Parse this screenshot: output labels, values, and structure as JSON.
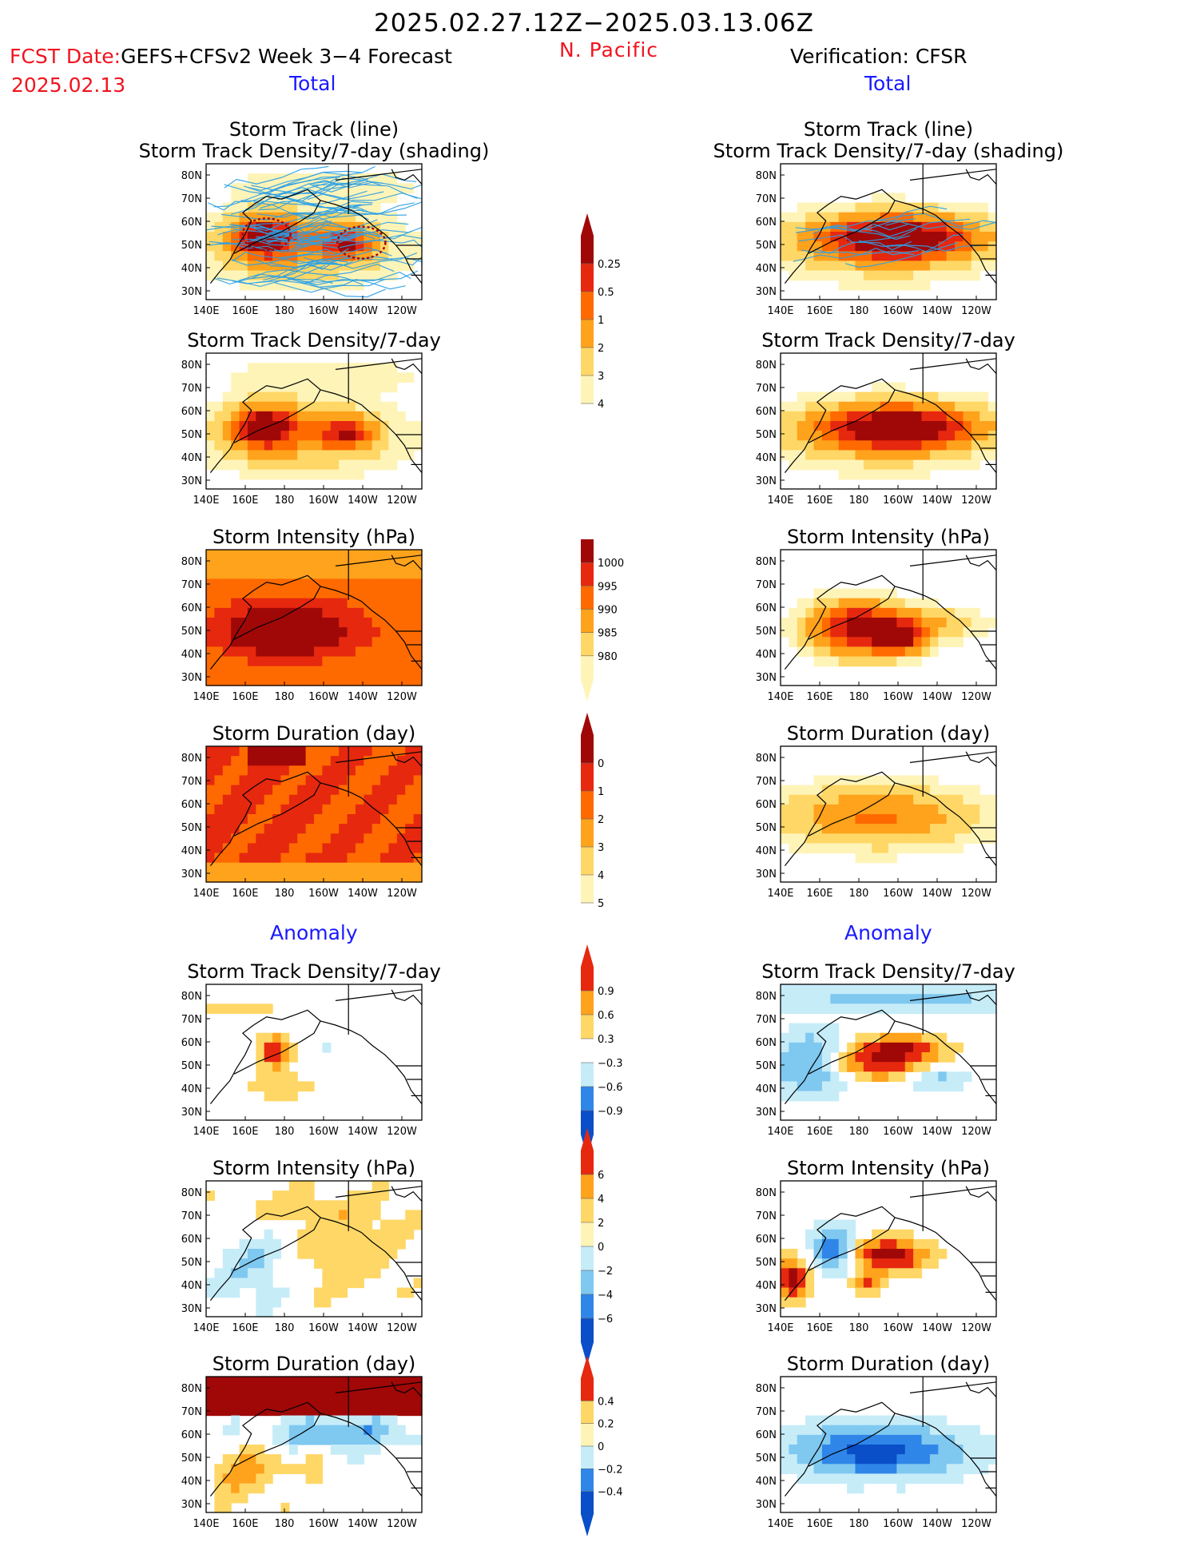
{
  "header": {
    "date_range": "2025.02.27.12Z−2025.03.13.06Z",
    "fcst_label": "FCST Date:",
    "fcst_model": "GEFS+CFSv2 Week 3−4 Forecast",
    "fcst_date": "2025.02.13",
    "region": "N. Pacific",
    "verification": "Verification: CFSR",
    "total_left": "Total",
    "total_right": "Total",
    "anomaly_left": "Anomaly",
    "anomaly_right": "Anomaly"
  },
  "colors": {
    "warm": [
      "#fff4b8",
      "#ffd766",
      "#ffa21c",
      "#ff6a00",
      "#e6280f",
      "#a00808"
    ],
    "cool": [
      "#c6ecf8",
      "#7fc8f0",
      "#2f86e8",
      "#0a4ec8"
    ],
    "text_red": "#f0141e",
    "text_blue": "#1a1aff"
  },
  "chart_data": [
    {
      "type": "heatmap",
      "panel": "forecast-total-track",
      "title": [
        "Storm Track (line)",
        "Storm Track Density/7-day (shading)"
      ],
      "x_ticks": [
        "140E",
        "160E",
        "180",
        "160W",
        "140W",
        "120W"
      ],
      "y_ticks": [
        "80N",
        "70N",
        "60N",
        "50N",
        "40N",
        "30N"
      ],
      "colorbar": {
        "labels": [
          "0.25",
          "0.5",
          "1",
          "2",
          "3",
          "4"
        ]
      },
      "max_level": 4
    },
    {
      "type": "heatmap",
      "panel": "verification-total-track",
      "title": [
        "Storm Track (line)",
        "Storm Track Density/7-day (shading)"
      ],
      "x_ticks": [
        "140E",
        "160E",
        "180",
        "160W",
        "140W",
        "120W"
      ],
      "y_ticks": [
        "80N",
        "70N",
        "60N",
        "50N",
        "40N",
        "30N"
      ],
      "max_level": 4
    },
    {
      "type": "heatmap",
      "panel": "forecast-total-density",
      "title": [
        "Storm Track Density/7-day"
      ],
      "x_ticks": [
        "140E",
        "160E",
        "180",
        "160W",
        "140W",
        "120W"
      ],
      "y_ticks": [
        "80N",
        "70N",
        "60N",
        "50N",
        "40N",
        "30N"
      ],
      "max_level": 4
    },
    {
      "type": "heatmap",
      "panel": "verification-total-density",
      "title": [
        "Storm Track Density/7-day"
      ],
      "x_ticks": [
        "140E",
        "160E",
        "180",
        "160W",
        "140W",
        "120W"
      ],
      "y_ticks": [
        "80N",
        "70N",
        "60N",
        "50N",
        "40N",
        "30N"
      ],
      "max_level": 4
    },
    {
      "type": "heatmap",
      "panel": "forecast-total-intensity",
      "title": [
        "Storm Intensity (hPa)"
      ],
      "x_ticks": [
        "140E",
        "160E",
        "180",
        "160W",
        "140W",
        "120W"
      ],
      "y_ticks": [
        "80N",
        "70N",
        "60N",
        "50N",
        "40N",
        "30N"
      ],
      "colorbar": {
        "labels": [
          "1000",
          "995",
          "990",
          "985",
          "980"
        ]
      }
    },
    {
      "type": "heatmap",
      "panel": "verification-total-intensity",
      "title": [
        "Storm Intensity (hPa)"
      ],
      "x_ticks": [
        "140E",
        "160E",
        "180",
        "160W",
        "140W",
        "120W"
      ],
      "y_ticks": [
        "80N",
        "70N",
        "60N",
        "50N",
        "40N",
        "30N"
      ]
    },
    {
      "type": "heatmap",
      "panel": "forecast-total-duration",
      "title": [
        "Storm Duration (day)"
      ],
      "x_ticks": [
        "140E",
        "160E",
        "180",
        "160W",
        "140W",
        "120W"
      ],
      "y_ticks": [
        "80N",
        "70N",
        "60N",
        "50N",
        "40N",
        "30N"
      ],
      "colorbar": {
        "labels": [
          "0",
          "1",
          "2",
          "3",
          "4",
          "5"
        ]
      }
    },
    {
      "type": "heatmap",
      "panel": "verification-total-duration",
      "title": [
        "Storm Duration (day)"
      ],
      "x_ticks": [
        "140E",
        "160E",
        "180",
        "160W",
        "140W",
        "120W"
      ],
      "y_ticks": [
        "80N",
        "70N",
        "60N",
        "50N",
        "40N",
        "30N"
      ]
    },
    {
      "type": "heatmap",
      "panel": "forecast-anomaly-density",
      "title": [
        "Storm Track Density/7-day"
      ],
      "x_ticks": [
        "140E",
        "160E",
        "180",
        "160W",
        "140W",
        "120W"
      ],
      "y_ticks": [
        "80N",
        "70N",
        "60N",
        "50N",
        "40N",
        "30N"
      ],
      "colorbar": {
        "labels": [
          "0.9",
          "0.6",
          "0.3",
          "−0.3",
          "−0.6",
          "−0.9"
        ]
      }
    },
    {
      "type": "heatmap",
      "panel": "verification-anomaly-density",
      "title": [
        "Storm Track Density/7-day"
      ],
      "x_ticks": [
        "140E",
        "160E",
        "180",
        "160W",
        "140W",
        "120W"
      ],
      "y_ticks": [
        "80N",
        "70N",
        "60N",
        "50N",
        "40N",
        "30N"
      ]
    },
    {
      "type": "heatmap",
      "panel": "forecast-anomaly-intensity",
      "title": [
        "Storm Intensity (hPa)"
      ],
      "x_ticks": [
        "140E",
        "160E",
        "180",
        "160W",
        "140W",
        "120W"
      ],
      "y_ticks": [
        "80N",
        "70N",
        "60N",
        "50N",
        "40N",
        "30N"
      ],
      "colorbar": {
        "labels": [
          "6",
          "4",
          "2",
          "0",
          "−2",
          "−4",
          "−6"
        ]
      }
    },
    {
      "type": "heatmap",
      "panel": "verification-anomaly-intensity",
      "title": [
        "Storm Intensity (hPa)"
      ],
      "x_ticks": [
        "140E",
        "160E",
        "180",
        "160W",
        "140W",
        "120W"
      ],
      "y_ticks": [
        "80N",
        "70N",
        "60N",
        "50N",
        "40N",
        "30N"
      ]
    },
    {
      "type": "heatmap",
      "panel": "forecast-anomaly-duration",
      "title": [
        "Storm Duration (day)"
      ],
      "x_ticks": [
        "140E",
        "160E",
        "180",
        "160W",
        "140W",
        "120W"
      ],
      "y_ticks": [
        "80N",
        "70N",
        "60N",
        "50N",
        "40N",
        "30N"
      ],
      "colorbar": {
        "labels": [
          "0.4",
          "0.2",
          "0",
          "−0.2",
          "−0.4"
        ]
      }
    },
    {
      "type": "heatmap",
      "panel": "verification-anomaly-duration",
      "title": [
        "Storm Duration (day)"
      ],
      "x_ticks": [
        "140E",
        "160E",
        "180",
        "160W",
        "140W",
        "120W"
      ],
      "y_ticks": [
        "80N",
        "70N",
        "60N",
        "50N",
        "40N",
        "30N"
      ]
    }
  ]
}
